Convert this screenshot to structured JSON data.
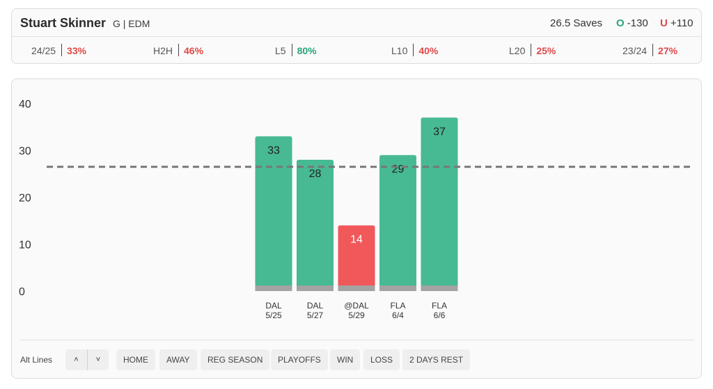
{
  "player": {
    "name": "Stuart Skinner",
    "meta": "G | EDM"
  },
  "prop": {
    "line": "26.5 Saves",
    "over_label": "O",
    "over_odds": "-130",
    "under_label": "U",
    "under_odds": "+110"
  },
  "splits": [
    {
      "label": "24/25",
      "value": "33%",
      "status": "red"
    },
    {
      "label": "H2H",
      "value": "46%",
      "status": "red"
    },
    {
      "label": "L5",
      "value": "80%",
      "status": "green"
    },
    {
      "label": "L10",
      "value": "40%",
      "status": "red"
    },
    {
      "label": "L20",
      "value": "25%",
      "status": "red"
    },
    {
      "label": "23/24",
      "value": "27%",
      "status": "red"
    }
  ],
  "colors": {
    "over": "#47ba93",
    "under": "#f0585a",
    "base": "#a3a3a3",
    "line": "#777777"
  },
  "chart_data": {
    "type": "bar",
    "categories": [
      "DAL 5/25",
      "DAL 5/27",
      "@DAL 5/29",
      "FLA 6/4",
      "FLA 6/6"
    ],
    "x_labels": [
      {
        "opponent": "DAL",
        "date": "5/25"
      },
      {
        "opponent": "DAL",
        "date": "5/27"
      },
      {
        "opponent": "@DAL",
        "date": "5/29"
      },
      {
        "opponent": "FLA",
        "date": "6/4"
      },
      {
        "opponent": "FLA",
        "date": "6/6"
      }
    ],
    "values": [
      33,
      28,
      14,
      29,
      37
    ],
    "reference_line": 26.5,
    "ylim": [
      0,
      40
    ],
    "yticks": [
      0,
      10,
      20,
      30,
      40
    ],
    "title": "",
    "xlabel": "",
    "ylabel": "",
    "grid": false
  },
  "footer": {
    "alt_lines_label": "Alt Lines",
    "filters": [
      "HOME",
      "AWAY",
      "REG SEASON",
      "PLAYOFFS",
      "WIN",
      "LOSS",
      "2 DAYS REST"
    ]
  }
}
